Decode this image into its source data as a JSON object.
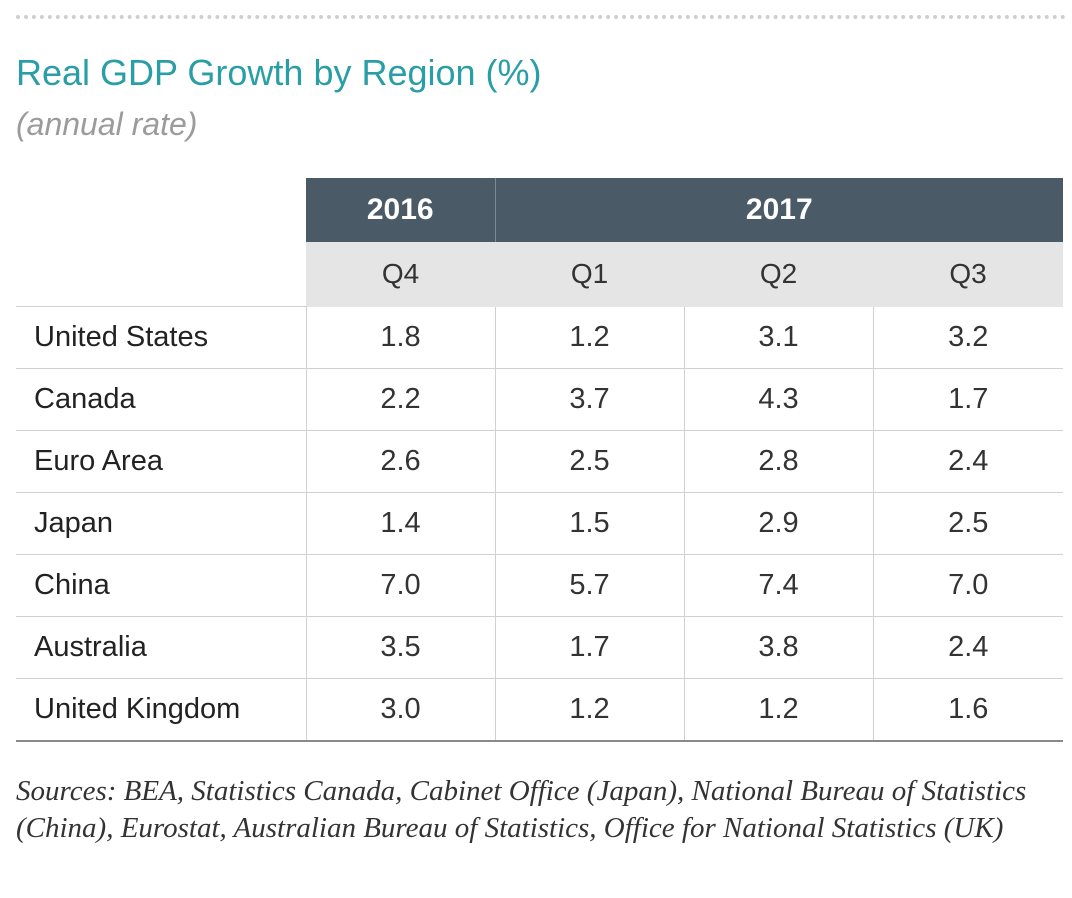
{
  "title": "Real GDP Growth by Region (%)",
  "subtitle": "(annual rate)",
  "header": {
    "years": [
      {
        "label": "2016"
      },
      {
        "label": "2017"
      }
    ],
    "quarters": [
      "Q4",
      "Q1",
      "Q2",
      "Q3"
    ]
  },
  "rows": [
    {
      "region": "United States",
      "values": [
        "1.8",
        "1.2",
        "3.1",
        "3.2"
      ]
    },
    {
      "region": "Canada",
      "values": [
        "2.2",
        "3.7",
        "4.3",
        "1.7"
      ]
    },
    {
      "region": "Euro Area",
      "values": [
        "2.6",
        "2.5",
        "2.8",
        "2.4"
      ]
    },
    {
      "region": "Japan",
      "values": [
        "1.4",
        "1.5",
        "2.9",
        "2.5"
      ]
    },
    {
      "region": "China",
      "values": [
        "7.0",
        "5.7",
        "7.4",
        "7.0"
      ]
    },
    {
      "region": "Australia",
      "values": [
        "3.5",
        "1.7",
        "3.8",
        "2.4"
      ]
    },
    {
      "region": "United Kingdom",
      "values": [
        "3.0",
        "1.2",
        "1.2",
        "1.6"
      ]
    }
  ],
  "sources": "Sources: BEA, Statistics Canada, Cabinet Office (Japan), National Bureau of Statistics (China), Eurostat, Australian Bureau of Statistics, Office for National Statistics (UK)",
  "colors": {
    "title": "#2a9ea6",
    "year_header_bg": "#4a5a67",
    "quarter_header_bg": "#e5e5e5"
  }
}
